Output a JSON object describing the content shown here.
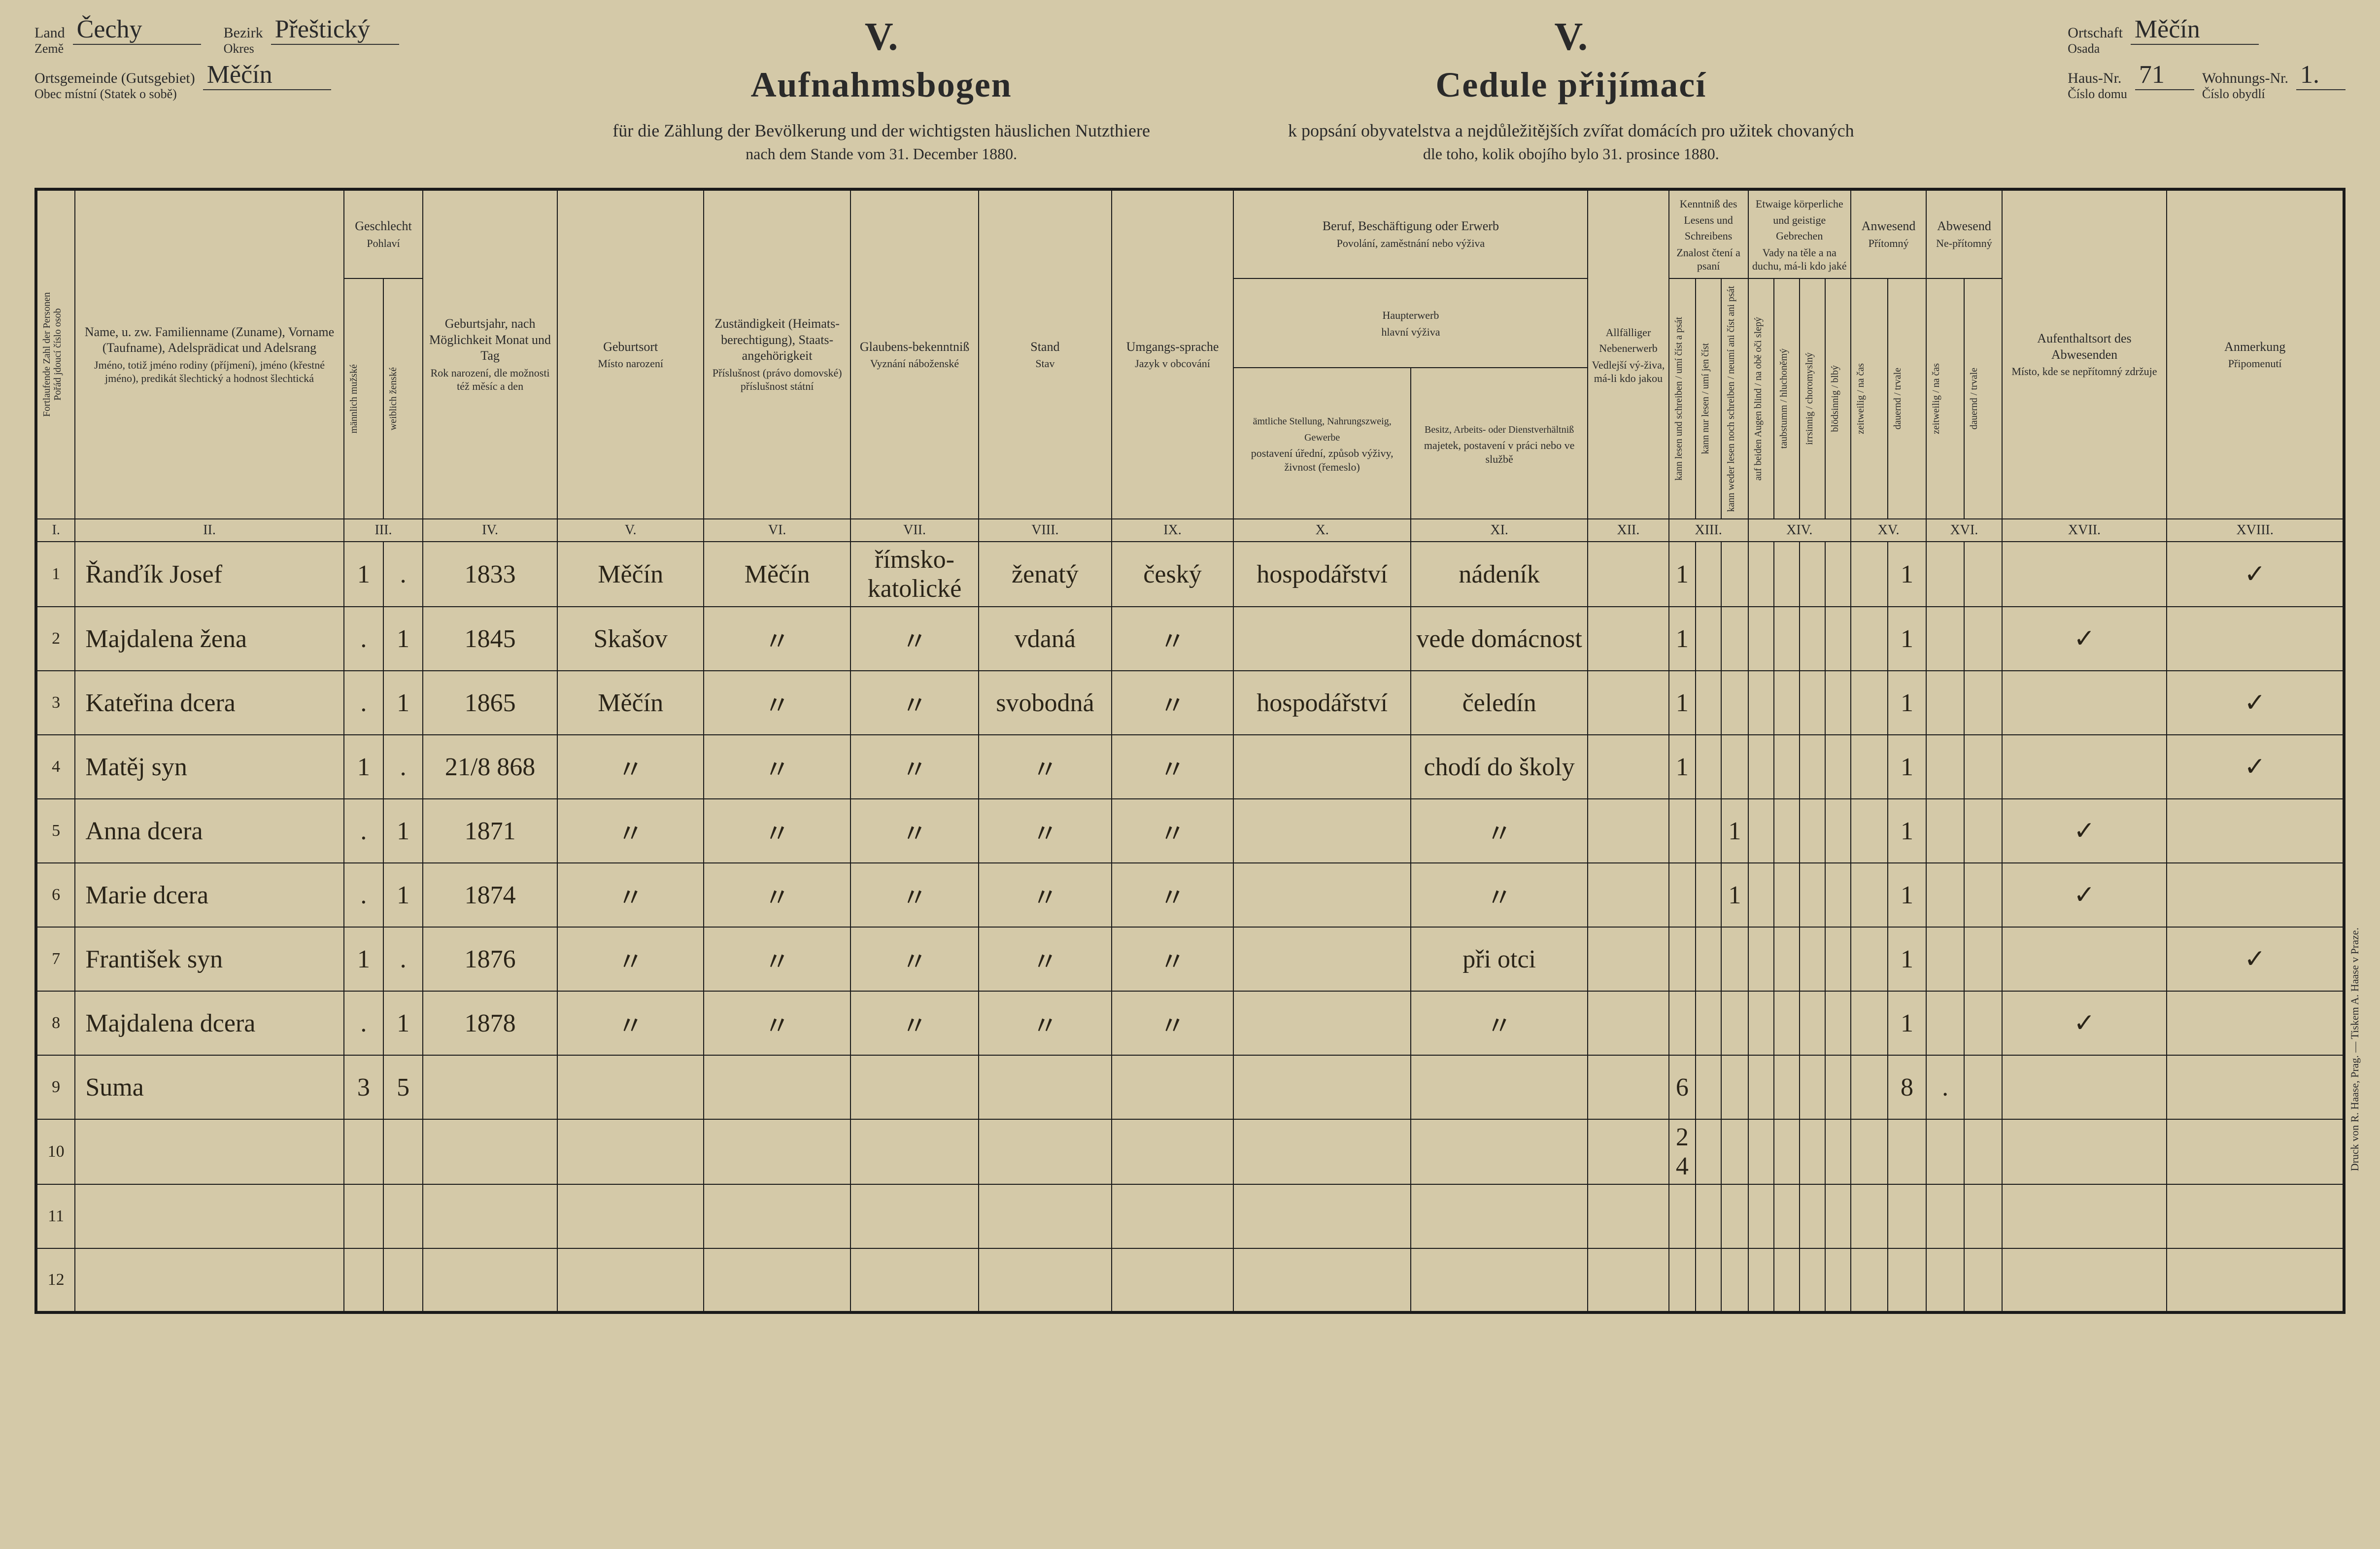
{
  "header": {
    "left": {
      "land_de": "Land",
      "land_cz": "Země",
      "land_val": "Čechy",
      "bezirk_de": "Bezirk",
      "bezirk_cz": "Okres",
      "bezirk_val": "Přeštický",
      "ort_de": "Ortsgemeinde (Gutsgebiet)",
      "ort_cz": "Obec místní (Statek o sobě)",
      "ort_val": "Měčín"
    },
    "right": {
      "ortschaft_de": "Ortschaft",
      "ortschaft_cz": "Osada",
      "ortschaft_val": "Měčín",
      "haus_de": "Haus-Nr.",
      "haus_cz": "Číslo domu",
      "haus_val": "71",
      "wohn_de": "Wohnungs-Nr.",
      "wohn_cz": "Číslo obydlí",
      "wohn_val": "1."
    },
    "roman": "V.",
    "title_de": "Aufnahmsbogen",
    "title_cz": "Cedule přijímací",
    "sub_de": "für die Zählung der Bevölkerung und der wichtigsten häuslichen Nutzthiere",
    "sub_cz": "k popsání obyvatelstva a nejdůležitějších zvířat domácích pro užitek chovaných",
    "date_de": "nach dem Stande vom 31. December 1880.",
    "date_cz": "dle toho, kolik obojího bylo 31. prosince 1880."
  },
  "columns": {
    "c1": {
      "de": "Fortlaufende Zahl der Personen",
      "cz": "Pořád jdoucí číslo osob",
      "num": "I."
    },
    "c2": {
      "de": "Name,\nu. zw. Familienname (Zuname), Vorname (Taufname), Adelsprädicat und Adelsrang",
      "cz": "Jméno,\ntotiž jméno rodiny (příjmení), jméno (křestné jméno), predikát šlechtický a hodnost šlechtická",
      "num": "II."
    },
    "c3": {
      "de": "Geschlecht",
      "cz": "Pohlaví",
      "m_de": "männlich",
      "m_cz": "mužské",
      "f_de": "weiblich",
      "f_cz": "ženské",
      "num": "III."
    },
    "c4": {
      "de": "Geburtsjahr,\nnach Möglichkeit Monat und Tag",
      "cz": "Rok narození,\ndle možnosti též měsíc a den",
      "num": "IV."
    },
    "c5": {
      "de": "Geburtsort",
      "cz": "Místo narození",
      "num": "V."
    },
    "c6": {
      "de": "Zuständigkeit (Heimats-berechtigung), Staats-angehörigkeit",
      "cz": "Příslušnost (právo domovské) příslušnost státní",
      "num": "VI."
    },
    "c7": {
      "de": "Glaubens-bekenntniß",
      "cz": "Vyznání náboženské",
      "num": "VII."
    },
    "c8": {
      "de": "Stand",
      "cz": "Stav",
      "num": "VIII."
    },
    "c9": {
      "de": "Umgangs-sprache",
      "cz": "Jazyk v obcování",
      "num": "IX."
    },
    "c10": {
      "de": "Beruf, Beschäftigung oder Erwerb",
      "cz": "Povolání, zaměstnání nebo výživa",
      "haupt_de": "Haupterwerb",
      "haupt_cz": "hlavní výživa",
      "x_de": "ämtliche Stellung, Nahrungszweig, Gewerbe",
      "x_cz": "postavení úřední, způsob výživy, živnost (řemeslo)",
      "xi_de": "Besitz, Arbeits- oder Dienstverhältniß",
      "xi_cz": "majetek, postavení v práci nebo ve službě",
      "numX": "X.",
      "numXI": "XI."
    },
    "c12": {
      "de": "Allfälliger Nebenerwerb",
      "cz": "Vedlejší vý-živa, má-li kdo jakou",
      "num": "XII."
    },
    "c13": {
      "de": "Kenntniß des Lesens und Schreibens",
      "cz": "Znalost čtení a psaní",
      "a": "kann lesen und schreiben / umí číst a psát",
      "b": "kann nur lesen / umí jen číst",
      "c": "kann weder lesen noch schreiben / neumí ani číst ani psát",
      "num": "XIII."
    },
    "c14": {
      "de": "Etwaige körperliche und geistige Gebrechen",
      "cz": "Vady na těle a na duchu, má-li kdo jaké",
      "a": "auf beiden Augen blind / na obě oči slepý",
      "b": "taubstumm / hluchoněmý",
      "c": "irrsinnig / choromyslný",
      "d": "blödsinnig / blbý",
      "num": "XIV."
    },
    "c15": {
      "de": "Anwesend",
      "cz": "Přítomný",
      "a": "zeitweilig / na čas",
      "b": "dauernd / trvale",
      "num": "XV."
    },
    "c16": {
      "de": "Abwesend",
      "cz": "Ne-přítomný",
      "a": "zeitweilig / na čas",
      "b": "dauernd / trvale",
      "num": "XVI."
    },
    "c17": {
      "de": "Aufenthaltsort des Abwesenden",
      "cz": "Místo, kde se nepřítomný zdržuje",
      "num": "XVII."
    },
    "c18": {
      "de": "Anmerkung",
      "cz": "Připomenutí",
      "num": "XVIII."
    }
  },
  "rows": [
    {
      "n": "1",
      "name": "Řanďík Josef",
      "m": "1",
      "f": ".",
      "birth": "1833",
      "place": "Měčín",
      "zust": "Měčín",
      "rel": "římsko-katolické",
      "stand": "ženatý",
      "lang": "český",
      "occX": "hospodářství",
      "occXI": "nádeník",
      "c12": "",
      "r1": "1",
      "r2": "",
      "r3": "",
      "g1": "",
      "g2": "",
      "g3": "",
      "g4": "",
      "p1": "",
      "p2": "1",
      "a1": "",
      "a2": "",
      "loc": "",
      "note": "✓"
    },
    {
      "n": "2",
      "name": "Majdalena žena",
      "m": ".",
      "f": "1",
      "birth": "1845",
      "place": "Skašov",
      "zust": "〃",
      "rel": "〃",
      "stand": "vdaná",
      "lang": "〃",
      "occX": "",
      "occXI": "vede domácnost",
      "c12": "",
      "r1": "1",
      "r2": "",
      "r3": "",
      "g1": "",
      "g2": "",
      "g3": "",
      "g4": "",
      "p1": "",
      "p2": "1",
      "a1": "",
      "a2": "",
      "loc": "✓",
      "note": ""
    },
    {
      "n": "3",
      "name": "Kateřina dcera",
      "m": ".",
      "f": "1",
      "birth": "1865",
      "place": "Měčín",
      "zust": "〃",
      "rel": "〃",
      "stand": "svobodná",
      "lang": "〃",
      "occX": "hospodářství",
      "occXI": "čeledín",
      "c12": "",
      "r1": "1",
      "r2": "",
      "r3": "",
      "g1": "",
      "g2": "",
      "g3": "",
      "g4": "",
      "p1": "",
      "p2": "1",
      "a1": "",
      "a2": "",
      "loc": "",
      "note": "✓"
    },
    {
      "n": "4",
      "name": "Matěj syn",
      "m": "1",
      "f": ".",
      "birth": "21/8 868",
      "place": "〃",
      "zust": "〃",
      "rel": "〃",
      "stand": "〃",
      "lang": "〃",
      "occX": "",
      "occXI": "chodí do školy",
      "c12": "",
      "r1": "1",
      "r2": "",
      "r3": "",
      "g1": "",
      "g2": "",
      "g3": "",
      "g4": "",
      "p1": "",
      "p2": "1",
      "a1": "",
      "a2": "",
      "loc": "",
      "note": "✓"
    },
    {
      "n": "5",
      "name": "Anna dcera",
      "m": ".",
      "f": "1",
      "birth": "1871",
      "place": "〃",
      "zust": "〃",
      "rel": "〃",
      "stand": "〃",
      "lang": "〃",
      "occX": "",
      "occXI": "〃",
      "c12": "",
      "r1": "",
      "r2": "",
      "r3": "1",
      "g1": "",
      "g2": "",
      "g3": "",
      "g4": "",
      "p1": "",
      "p2": "1",
      "a1": "",
      "a2": "",
      "loc": "✓",
      "note": ""
    },
    {
      "n": "6",
      "name": "Marie dcera",
      "m": ".",
      "f": "1",
      "birth": "1874",
      "place": "〃",
      "zust": "〃",
      "rel": "〃",
      "stand": "〃",
      "lang": "〃",
      "occX": "",
      "occXI": "〃",
      "c12": "",
      "r1": "",
      "r2": "",
      "r3": "1",
      "g1": "",
      "g2": "",
      "g3": "",
      "g4": "",
      "p1": "",
      "p2": "1",
      "a1": "",
      "a2": "",
      "loc": "✓",
      "note": ""
    },
    {
      "n": "7",
      "name": "František syn",
      "m": "1",
      "f": ".",
      "birth": "1876",
      "place": "〃",
      "zust": "〃",
      "rel": "〃",
      "stand": "〃",
      "lang": "〃",
      "occX": "",
      "occXI": "při otci",
      "c12": "",
      "r1": "",
      "r2": "",
      "r3": "",
      "g1": "",
      "g2": "",
      "g3": "",
      "g4": "",
      "p1": "",
      "p2": "1",
      "a1": "",
      "a2": "",
      "loc": "",
      "note": "✓"
    },
    {
      "n": "8",
      "name": "Majdalena dcera",
      "m": ".",
      "f": "1",
      "birth": "1878",
      "place": "〃",
      "zust": "〃",
      "rel": "〃",
      "stand": "〃",
      "lang": "〃",
      "occX": "",
      "occXI": "〃",
      "c12": "",
      "r1": "",
      "r2": "",
      "r3": "",
      "g1": "",
      "g2": "",
      "g3": "",
      "g4": "",
      "p1": "",
      "p2": "1",
      "a1": "",
      "a2": "",
      "loc": "✓",
      "note": ""
    },
    {
      "n": "9",
      "name": "Suma",
      "m": "3",
      "f": "5",
      "birth": "",
      "place": "",
      "zust": "",
      "rel": "",
      "stand": "",
      "lang": "",
      "occX": "",
      "occXI": "",
      "c12": "",
      "r1": "6",
      "r2": "",
      "r3": "",
      "g1": "",
      "g2": "",
      "g3": "",
      "g4": "",
      "p1": "",
      "p2": "8",
      "a1": ".",
      "a2": "",
      "loc": "",
      "note": ""
    },
    {
      "n": "10",
      "name": "",
      "m": "",
      "f": "",
      "birth": "",
      "place": "",
      "zust": "",
      "rel": "",
      "stand": "",
      "lang": "",
      "occX": "",
      "occXI": "",
      "c12": "",
      "r1": "2\n4",
      "r2": "",
      "r3": "",
      "g1": "",
      "g2": "",
      "g3": "",
      "g4": "",
      "p1": "",
      "p2": "",
      "a1": "",
      "a2": "",
      "loc": "",
      "note": ""
    },
    {
      "n": "11",
      "name": "",
      "m": "",
      "f": "",
      "birth": "",
      "place": "",
      "zust": "",
      "rel": "",
      "stand": "",
      "lang": "",
      "occX": "",
      "occXI": "",
      "c12": "",
      "r1": "",
      "r2": "",
      "r3": "",
      "g1": "",
      "g2": "",
      "g3": "",
      "g4": "",
      "p1": "",
      "p2": "",
      "a1": "",
      "a2": "",
      "loc": "",
      "note": ""
    },
    {
      "n": "12",
      "name": "",
      "m": "",
      "f": "",
      "birth": "",
      "place": "",
      "zust": "",
      "rel": "",
      "stand": "",
      "lang": "",
      "occX": "",
      "occXI": "",
      "c12": "",
      "r1": "",
      "r2": "",
      "r3": "",
      "g1": "",
      "g2": "",
      "g3": "",
      "g4": "",
      "p1": "",
      "p2": "",
      "a1": "",
      "a2": "",
      "loc": "",
      "note": ""
    }
  ],
  "printer": "Druck von R. Haase, Prag. — Tiskem A. Haase v Praze.",
  "style": {
    "bg": "#d4c9a8",
    "ink": "#2a2a2a",
    "rule": "#1a1a1a",
    "script": "#2a2418"
  }
}
